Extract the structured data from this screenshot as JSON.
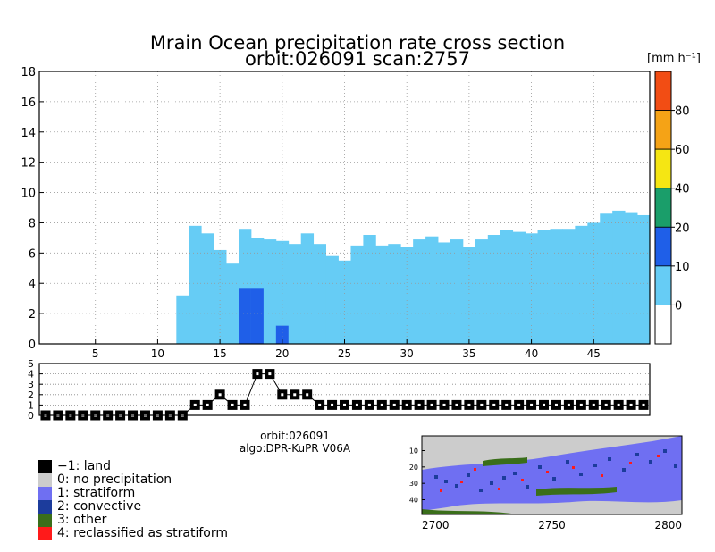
{
  "header": {
    "title": "Mrain Ocean precipitation rate cross section",
    "subtitle": "orbit:026091     scan:2757"
  },
  "colorbar": {
    "unit_label": "[mm h⁻¹]",
    "ticks": [
      "0",
      "10",
      "20",
      "40",
      "60",
      "80"
    ],
    "colors": [
      "#ffffff",
      "#66ccf5",
      "#1f5fe8",
      "#1a9e6a",
      "#f5e613",
      "#f5a316",
      "#f24d14"
    ]
  },
  "info": {
    "orbit": "orbit:026091",
    "algo": "algo:DPR-KuPR V06A"
  },
  "legend": {
    "items": [
      {
        "label": "−1: land",
        "color": "#000000"
      },
      {
        "label": "0: no precipitation",
        "color": "#cccccc"
      },
      {
        "label": "1: stratiform",
        "color": "#6f6ff2"
      },
      {
        "label": "2: convective",
        "color": "#1c3c9c"
      },
      {
        "label": "3: other",
        "color": "#3a6e1a"
      },
      {
        "label": "4: reclassified as stratiform",
        "color": "#ff1a1a"
      }
    ]
  },
  "chart_data": [
    {
      "type": "heatmap",
      "title": "Mrain Ocean precipitation rate cross section",
      "subtitle": "orbit:026091     scan:2757",
      "xlabel": "",
      "ylabel": "",
      "x_ticks": [
        5,
        10,
        15,
        20,
        25,
        30,
        35,
        40,
        45
      ],
      "y_ticks": [
        0,
        2,
        4,
        6,
        8,
        10,
        12,
        14,
        16,
        18
      ],
      "xlim": [
        0.5,
        49.5
      ],
      "ylim": [
        0,
        18
      ],
      "grid": true,
      "echo_top_km": [
        0,
        0,
        0,
        0,
        0,
        0,
        0,
        0,
        0,
        0,
        0,
        3.2,
        7.8,
        7.3,
        6.2,
        5.3,
        7.6,
        7.0,
        6.9,
        6.8,
        6.6,
        7.3,
        6.6,
        5.8,
        5.5,
        6.5,
        7.2,
        6.5,
        6.6,
        6.4,
        6.9,
        7.1,
        6.7,
        6.9,
        6.4,
        6.9,
        7.2,
        7.5,
        7.4,
        7.3,
        7.5,
        7.6,
        7.6,
        7.8,
        8.0,
        8.6,
        8.8,
        8.7,
        8.5
      ],
      "convective_cores": [
        {
          "ray": 17,
          "bottom_km": 0,
          "top_km": 3.7,
          "rate_class": "10-20"
        },
        {
          "ray": 18,
          "bottom_km": 0,
          "top_km": 3.7,
          "rate_class": "10-20"
        },
        {
          "ray": 20,
          "bottom_km": 0,
          "top_km": 1.2,
          "rate_class": "10-20"
        }
      ],
      "colorbar_levels_mm_per_h": [
        0,
        10,
        20,
        40,
        60,
        80
      ]
    },
    {
      "type": "line",
      "title": "",
      "y_ticks": [
        0,
        1,
        2,
        3,
        4,
        5
      ],
      "ylim": [
        0,
        5
      ],
      "grid": true,
      "x": [
        1,
        2,
        3,
        4,
        5,
        6,
        7,
        8,
        9,
        10,
        11,
        12,
        13,
        14,
        15,
        16,
        17,
        18,
        19,
        20,
        21,
        22,
        23,
        24,
        25,
        26,
        27,
        28,
        29,
        30,
        31,
        32,
        33,
        34,
        35,
        36,
        37,
        38,
        39,
        40,
        41,
        42,
        43,
        44,
        45,
        46,
        47,
        48,
        49
      ],
      "values": [
        0,
        0,
        0,
        0,
        0,
        0,
        0,
        0,
        0,
        0,
        0,
        0,
        1,
        1,
        2,
        1,
        1,
        4,
        4,
        2,
        2,
        2,
        1,
        1,
        1,
        1,
        1,
        1,
        1,
        1,
        1,
        1,
        1,
        1,
        1,
        1,
        1,
        1,
        1,
        1,
        1,
        1,
        1,
        1,
        1,
        1,
        1,
        1,
        1
      ]
    },
    {
      "type": "heatmap",
      "title": "",
      "x_ticks": [
        2700,
        2750,
        2800
      ],
      "y_ticks": [
        10,
        20,
        30,
        40
      ],
      "xlim": [
        2700,
        2800
      ],
      "ylim": [
        1,
        49
      ],
      "classes": [
        "-1: land",
        "0: no precipitation",
        "1: stratiform",
        "2: convective",
        "3: other",
        "4: reclassified as stratiform"
      ]
    }
  ]
}
